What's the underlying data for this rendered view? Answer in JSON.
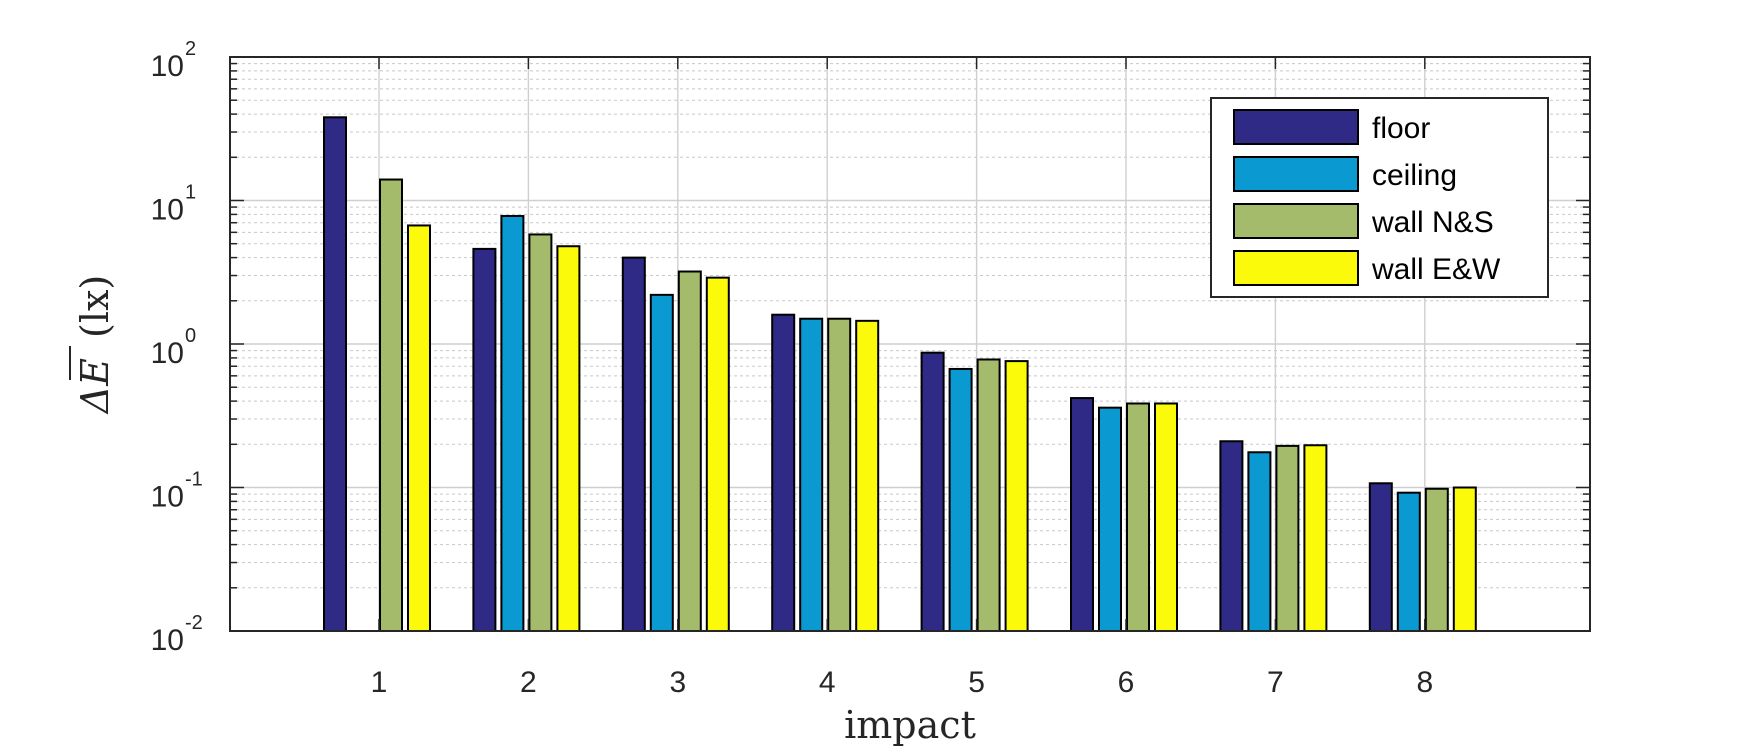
{
  "chart_data": {
    "type": "bar",
    "categories": [
      "1",
      "2",
      "3",
      "4",
      "5",
      "6",
      "7",
      "8"
    ],
    "series": [
      {
        "name": "floor",
        "color": "#2e2a86",
        "values": [
          38,
          4.6,
          4.0,
          1.6,
          0.87,
          0.42,
          0.21,
          0.107
        ]
      },
      {
        "name": "ceiling",
        "color": "#0a99d0",
        "values": [
          null,
          7.8,
          2.2,
          1.5,
          0.67,
          0.36,
          0.176,
          0.092
        ]
      },
      {
        "name": "wall N&S",
        "color": "#a3bb6a",
        "values": [
          14,
          5.8,
          3.2,
          1.5,
          0.78,
          0.385,
          0.195,
          0.098
        ]
      },
      {
        "name": "wall E&W",
        "color": "#fafa0a",
        "values": [
          6.7,
          4.8,
          2.9,
          1.45,
          0.76,
          0.385,
          0.197,
          0.1
        ]
      }
    ],
    "xlabel": "impact",
    "ylabel_main": "ΔE",
    "ylabel_unit": "(lx)",
    "yscale": "log",
    "ylim": [
      0.01,
      100
    ],
    "y_ticks": [
      {
        "base": "10",
        "exp": "-2",
        "value": 0.01
      },
      {
        "base": "10",
        "exp": "-1",
        "value": 0.1
      },
      {
        "base": "10",
        "exp": "0",
        "value": 1
      },
      {
        "base": "10",
        "exp": "1",
        "value": 10
      },
      {
        "base": "10",
        "exp": "2",
        "value": 100
      }
    ],
    "grid": true,
    "legend_position": "top-right"
  }
}
